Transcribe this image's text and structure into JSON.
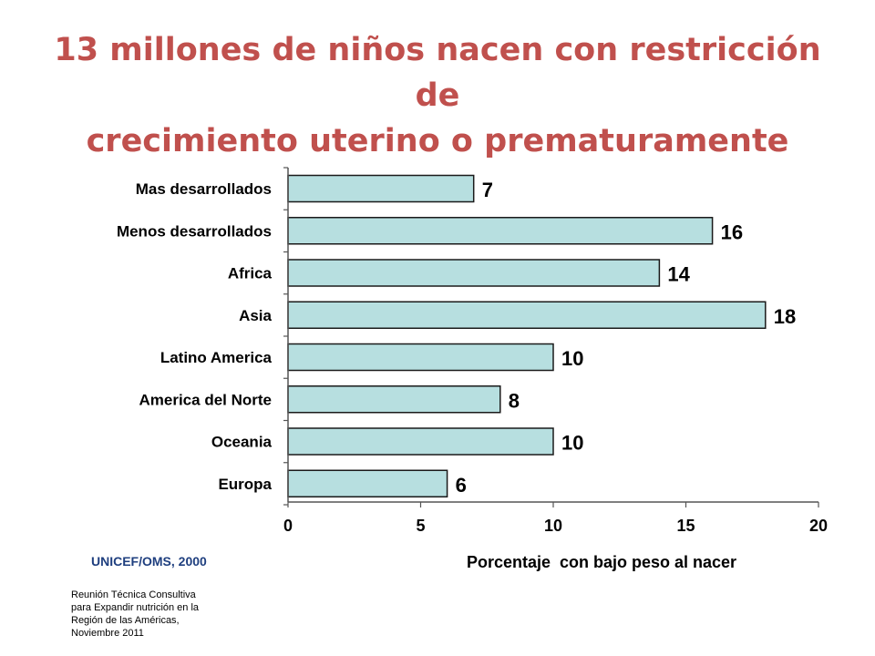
{
  "title": {
    "line1": "13 millones de niños nacen con restricción de",
    "line2": "crecimiento uterino o prematuramente"
  },
  "source": "UNICEF/OMS, 2000",
  "footnote": {
    "lines": [
      "Reunión Técnica Consultiva",
      "para Expandir nutrición en la",
      "Región de las Américas,",
      "Noviembre 2011"
    ]
  },
  "colors": {
    "title": "#c0504d",
    "bar_fill": "#b7dfe0",
    "bar_stroke": "#1a1a1a",
    "source": "#1f3f7f"
  },
  "chart_data": {
    "type": "bar",
    "orientation": "horizontal",
    "categories": [
      "Mas desarrollados",
      "Menos desarrollados",
      "Africa",
      "Asia",
      "Latino America",
      "America del Norte",
      "Oceania",
      "Europa"
    ],
    "values": [
      7,
      16,
      14,
      18,
      10,
      8,
      10,
      6
    ],
    "data_labels": [
      "7",
      "16",
      "14",
      "18",
      "10",
      "8",
      "10",
      "6"
    ],
    "xlabel": "Porcentaje  con bajo peso al nacer",
    "ylabel": "",
    "xlim": [
      0,
      20
    ],
    "x_ticks": [
      0,
      5,
      10,
      15,
      20
    ],
    "grid": false,
    "legend": "none"
  }
}
